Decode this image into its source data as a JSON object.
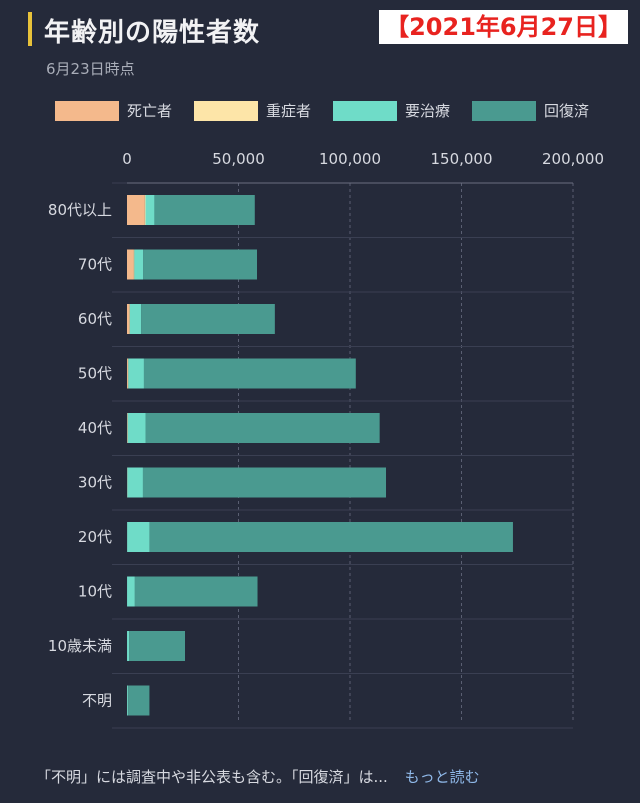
{
  "header": {
    "title": "年齢別の陽性者数",
    "date_badge": "【2021年6月27日】",
    "subtitle": "6月23日時点"
  },
  "legend": [
    {
      "label": "死亡者",
      "color": "#f4b98c"
    },
    {
      "label": "重症者",
      "color": "#fde5a8"
    },
    {
      "label": "要治療",
      "color": "#6fdcc8"
    },
    {
      "label": "回復済",
      "color": "#4a9a90"
    }
  ],
  "chart_data": {
    "type": "bar",
    "orientation": "horizontal",
    "stacked": true,
    "categories": [
      "80代以上",
      "70代",
      "60代",
      "50代",
      "40代",
      "30代",
      "20代",
      "10代",
      "10歳未満",
      "不明"
    ],
    "series": [
      {
        "name": "死亡者",
        "color": "#f4b98c",
        "values": [
          8000,
          3000,
          1000,
          400,
          200,
          100,
          50,
          20,
          10,
          50
        ]
      },
      {
        "name": "重症者",
        "color": "#fde5a8",
        "values": [
          300,
          300,
          300,
          200,
          100,
          50,
          20,
          10,
          5,
          10
        ]
      },
      {
        "name": "要治療",
        "color": "#6fdcc8",
        "values": [
          4000,
          4000,
          5000,
          7000,
          8000,
          7000,
          10000,
          3500,
          1000,
          500
        ]
      },
      {
        "name": "回復済",
        "color": "#4a9a90",
        "values": [
          45000,
          51000,
          60000,
          95000,
          105000,
          109000,
          163000,
          55000,
          25000,
          9500
        ]
      }
    ],
    "x_ticks": [
      0,
      50000,
      100000,
      150000,
      200000
    ],
    "x_tick_labels": [
      "0",
      "50,000",
      "100,000",
      "150,000",
      "200,000"
    ],
    "xlim": [
      0,
      200000
    ],
    "grid": true,
    "legend_position": "top"
  },
  "footer": {
    "note": "「不明」には調査中や非公表も含む。「回復済」は...",
    "more_link": "もっと読む"
  }
}
